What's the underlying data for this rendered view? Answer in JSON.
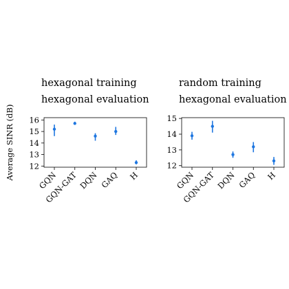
{
  "ylabel": "Average SINR (dB)",
  "color": "#1f77e0",
  "chart_data": [
    {
      "type": "scatter",
      "title": [
        "hexagonal training",
        "hexagonal evaluation"
      ],
      "categories": [
        "GQN",
        "GQN-GAT",
        "DQN",
        "GAQ",
        "H"
      ],
      "ylim": [
        11.9,
        16.2
      ],
      "yticks": [
        12,
        13,
        14,
        15,
        16
      ],
      "series": [
        {
          "values": [
            15.2,
            15.7,
            14.6,
            15.0,
            12.3
          ],
          "err_low": [
            14.6,
            15.6,
            14.2,
            14.7,
            12.15
          ],
          "err_high": [
            15.6,
            15.85,
            14.85,
            15.4,
            12.5
          ]
        }
      ]
    },
    {
      "type": "scatter",
      "title": [
        "random training",
        "hexagonal evaluation"
      ],
      "categories": [
        "GQN",
        "GQN-GAT",
        "DQN",
        "GAQ",
        "H"
      ],
      "ylim": [
        11.9,
        15.05
      ],
      "yticks": [
        12,
        13,
        14,
        15
      ],
      "series": [
        {
          "values": [
            13.9,
            14.5,
            12.7,
            13.2,
            12.3
          ],
          "err_low": [
            13.65,
            14.1,
            12.5,
            12.85,
            12.05
          ],
          "err_high": [
            14.15,
            14.85,
            12.9,
            13.5,
            12.55
          ]
        }
      ]
    }
  ]
}
